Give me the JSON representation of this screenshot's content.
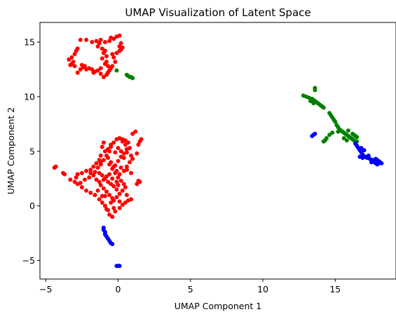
{
  "chart_data": {
    "type": "scatter",
    "title": "UMAP Visualization of Latent Space",
    "xlabel": "UMAP Component 1",
    "ylabel": "UMAP Component 2",
    "xlim": [
      -5.4,
      19.2
    ],
    "ylim": [
      -6.7,
      16.8
    ],
    "xticks": [
      -5,
      0,
      5,
      10,
      15
    ],
    "yticks": [
      -5,
      0,
      5,
      10,
      15
    ],
    "grid": false,
    "series": [
      {
        "color": "#ff0000",
        "points": [
          [
            -2.6,
            15.2
          ],
          [
            -2.2,
            15.2
          ],
          [
            -1.8,
            15.0
          ],
          [
            -1.5,
            15.1
          ],
          [
            -1.2,
            15.2
          ],
          [
            -0.9,
            15.0
          ],
          [
            -0.6,
            15.1
          ],
          [
            -0.3,
            15.3
          ],
          [
            -0.1,
            15.5
          ],
          [
            0.1,
            15.6
          ],
          [
            0.2,
            14.9
          ],
          [
            0.1,
            14.6
          ],
          [
            0.2,
            14.3
          ],
          [
            0.3,
            14.5
          ],
          [
            0.1,
            14.2
          ],
          [
            -0.1,
            14.0
          ],
          [
            -0.3,
            13.6
          ],
          [
            -0.2,
            13.2
          ],
          [
            -0.4,
            12.8
          ],
          [
            -0.6,
            12.4
          ],
          [
            -0.8,
            12.0
          ],
          [
            -1.0,
            11.8
          ],
          [
            -1.2,
            12.1
          ],
          [
            -1.4,
            12.4
          ],
          [
            -1.6,
            12.3
          ],
          [
            -1.8,
            12.5
          ],
          [
            -2.0,
            12.6
          ],
          [
            -2.2,
            12.5
          ],
          [
            -2.4,
            12.7
          ],
          [
            -2.6,
            12.5
          ],
          [
            -2.8,
            12.2
          ],
          [
            -3.0,
            12.8
          ],
          [
            -3.3,
            12.9
          ],
          [
            -3.1,
            13.2
          ],
          [
            -3.4,
            13.4
          ],
          [
            -3.2,
            13.6
          ],
          [
            -3.0,
            13.9
          ],
          [
            -2.9,
            14.2
          ],
          [
            -2.8,
            14.4
          ],
          [
            -1.4,
            14.6
          ],
          [
            -1.1,
            14.4
          ],
          [
            -0.9,
            14.2
          ],
          [
            -1.0,
            14.0
          ],
          [
            -0.8,
            13.7
          ],
          [
            -1.1,
            13.5
          ],
          [
            -0.8,
            13.2
          ],
          [
            -0.9,
            13.0
          ],
          [
            -0.7,
            12.8
          ],
          [
            -0.5,
            12.6
          ],
          [
            -0.4,
            13.9
          ],
          [
            -1.3,
            14.9
          ],
          [
            -1.7,
            12.2
          ],
          [
            -2.3,
            12.8
          ],
          [
            -3.2,
            13.0
          ],
          [
            -1.2,
            12.6
          ],
          [
            -0.7,
            12.2
          ],
          [
            -2.5,
            12.9
          ],
          [
            -0.5,
            15.4
          ],
          [
            -4.3,
            3.6
          ],
          [
            -4.4,
            3.5
          ],
          [
            -3.8,
            3.0
          ],
          [
            -3.7,
            2.9
          ],
          [
            -3.3,
            2.4
          ],
          [
            -3.0,
            2.2
          ],
          [
            -2.8,
            2.0
          ],
          [
            -2.5,
            1.7
          ],
          [
            -2.2,
            1.4
          ],
          [
            -1.9,
            1.2
          ],
          [
            -1.6,
            1.0
          ],
          [
            -1.3,
            0.6
          ],
          [
            -1.1,
            0.3
          ],
          [
            -0.9,
            0.0
          ],
          [
            -0.7,
            -0.4
          ],
          [
            -0.6,
            -0.8
          ],
          [
            -0.4,
            -1.0
          ],
          [
            -0.2,
            -0.5
          ],
          [
            0.1,
            -0.2
          ],
          [
            0.3,
            0.1
          ],
          [
            0.5,
            0.3
          ],
          [
            0.7,
            0.5
          ],
          [
            0.9,
            0.6
          ],
          [
            -2.8,
            2.9
          ],
          [
            -2.5,
            3.0
          ],
          [
            -2.2,
            3.2
          ],
          [
            -1.9,
            3.0
          ],
          [
            -1.6,
            3.1
          ],
          [
            -1.3,
            3.0
          ],
          [
            -1.1,
            2.8
          ],
          [
            -0.9,
            2.5
          ],
          [
            -0.7,
            2.2
          ],
          [
            -0.5,
            2.0
          ],
          [
            -0.3,
            1.8
          ],
          [
            -0.1,
            1.5
          ],
          [
            -1.5,
            2.4
          ],
          [
            -1.3,
            2.2
          ],
          [
            -1.2,
            1.9
          ],
          [
            -1.0,
            1.6
          ],
          [
            -0.8,
            1.3
          ],
          [
            -0.6,
            1.0
          ],
          [
            -0.4,
            0.7
          ],
          [
            -1.4,
            3.5
          ],
          [
            -1.2,
            3.8
          ],
          [
            -1.0,
            4.2
          ],
          [
            -0.8,
            4.6
          ],
          [
            -0.6,
            5.0
          ],
          [
            -0.5,
            5.4
          ],
          [
            -0.3,
            5.8
          ],
          [
            -0.1,
            6.1
          ],
          [
            0.1,
            6.2
          ],
          [
            0.3,
            5.9
          ],
          [
            0.5,
            5.6
          ],
          [
            0.6,
            5.2
          ],
          [
            0.4,
            4.8
          ],
          [
            0.2,
            4.5
          ],
          [
            0.0,
            4.1
          ],
          [
            -0.2,
            3.7
          ],
          [
            -0.4,
            3.4
          ],
          [
            -0.2,
            3.0
          ],
          [
            0.0,
            2.6
          ],
          [
            0.2,
            2.3
          ],
          [
            0.4,
            2.0
          ],
          [
            0.5,
            1.7
          ],
          [
            0.3,
            1.4
          ],
          [
            0.1,
            1.1
          ],
          [
            -0.1,
            0.8
          ],
          [
            -0.3,
            0.5
          ],
          [
            -1.0,
            5.8
          ],
          [
            -1.1,
            5.4
          ],
          [
            -0.9,
            5.0
          ],
          [
            -0.7,
            4.4
          ],
          [
            -0.5,
            4.0
          ],
          [
            -0.3,
            3.6
          ],
          [
            -0.1,
            3.2
          ],
          [
            0.1,
            2.9
          ],
          [
            -1.2,
            4.6
          ],
          [
            -1.3,
            4.2
          ],
          [
            -1.5,
            3.9
          ],
          [
            -1.7,
            3.6
          ],
          [
            -1.9,
            3.3
          ],
          [
            0.5,
            6.0
          ],
          [
            0.7,
            5.8
          ],
          [
            0.8,
            5.3
          ],
          [
            0.6,
            4.9
          ],
          [
            0.9,
            4.6
          ],
          [
            1.0,
            4.3
          ],
          [
            0.8,
            4.0
          ],
          [
            0.6,
            3.6
          ],
          [
            0.4,
            3.2
          ],
          [
            1.0,
            6.6
          ],
          [
            1.2,
            6.8
          ],
          [
            1.4,
            5.6
          ],
          [
            1.6,
            6.1
          ],
          [
            1.5,
            5.9
          ],
          [
            1.3,
            4.8
          ],
          [
            1.4,
            2.3
          ],
          [
            1.5,
            2.2
          ],
          [
            1.3,
            2.0
          ],
          [
            0.9,
            3.0
          ],
          [
            0.6,
            3.3
          ],
          [
            0.2,
            3.5
          ],
          [
            -0.6,
            2.9
          ],
          [
            -0.8,
            2.7
          ],
          [
            -1.0,
            2.4
          ],
          [
            -2.0,
            2.6
          ],
          [
            -2.3,
            2.4
          ],
          [
            -2.6,
            2.1
          ],
          [
            -0.2,
            4.9
          ],
          [
            0.0,
            5.3
          ],
          [
            0.2,
            5.0
          ],
          [
            -0.4,
            2.5
          ],
          [
            0.0,
            1.9
          ],
          [
            -1.4,
            1.4
          ],
          [
            -0.9,
            0.9
          ],
          [
            -0.5,
            0.3
          ],
          [
            -0.3,
            -0.2
          ],
          [
            -0.5,
            5.6
          ],
          [
            -0.7,
            5.2
          ],
          [
            0.6,
            1.0
          ],
          [
            -1.1,
            0.9
          ],
          [
            -0.8,
            -0.3
          ],
          [
            0.1,
            0.4
          ],
          [
            -1.2,
            4.0
          ],
          [
            -0.6,
            3.8
          ],
          [
            0.4,
            4.4
          ],
          [
            -0.1,
            2.2
          ],
          [
            -2.9,
            2.6
          ],
          [
            -1.7,
            2.8
          ],
          [
            0.3,
            6.1
          ]
        ]
      },
      {
        "color": "#008000",
        "points": [
          [
            -0.1,
            12.4
          ],
          [
            0.6,
            12.0
          ],
          [
            0.7,
            11.9
          ],
          [
            0.8,
            11.8
          ],
          [
            0.9,
            11.8
          ],
          [
            1.0,
            11.7
          ],
          [
            12.8,
            10.1
          ],
          [
            13.0,
            10.0
          ],
          [
            13.2,
            9.9
          ],
          [
            13.4,
            9.8
          ],
          [
            13.5,
            9.7
          ],
          [
            13.6,
            9.6
          ],
          [
            13.7,
            9.5
          ],
          [
            13.8,
            9.4
          ],
          [
            13.9,
            9.3
          ],
          [
            14.0,
            9.2
          ],
          [
            14.1,
            9.1
          ],
          [
            14.2,
            9.0
          ],
          [
            13.6,
            10.6
          ],
          [
            13.6,
            10.8
          ],
          [
            13.3,
            9.6
          ],
          [
            13.5,
            9.4
          ],
          [
            14.6,
            8.5
          ],
          [
            14.7,
            8.3
          ],
          [
            14.8,
            8.1
          ],
          [
            14.9,
            7.9
          ],
          [
            15.0,
            7.7
          ],
          [
            15.1,
            7.4
          ],
          [
            15.2,
            7.2
          ],
          [
            15.3,
            7.0
          ],
          [
            15.4,
            6.9
          ],
          [
            15.5,
            6.8
          ],
          [
            15.6,
            6.7
          ],
          [
            15.7,
            6.6
          ],
          [
            15.8,
            6.5
          ],
          [
            15.9,
            6.4
          ],
          [
            16.0,
            6.3
          ],
          [
            16.1,
            6.2
          ],
          [
            16.2,
            6.1
          ],
          [
            16.3,
            6.0
          ],
          [
            16.4,
            5.9
          ],
          [
            16.5,
            6.3
          ],
          [
            16.4,
            6.4
          ],
          [
            16.3,
            6.5
          ],
          [
            16.2,
            6.6
          ],
          [
            14.8,
            6.7
          ],
          [
            14.6,
            6.5
          ],
          [
            14.4,
            6.2
          ],
          [
            14.3,
            6.0
          ],
          [
            14.2,
            5.9
          ],
          [
            15.6,
            6.2
          ],
          [
            15.8,
            6.0
          ],
          [
            16.4,
            5.8
          ],
          [
            16.5,
            5.9
          ],
          [
            15.2,
            6.8
          ],
          [
            15.9,
            6.9
          ]
        ]
      },
      {
        "color": "#0000ff",
        "points": [
          [
            -1.0,
            -2.0
          ],
          [
            -1.0,
            -2.2
          ],
          [
            -0.9,
            -2.4
          ],
          [
            -0.9,
            -2.6
          ],
          [
            -0.8,
            -2.8
          ],
          [
            -0.7,
            -3.0
          ],
          [
            -0.6,
            -3.2
          ],
          [
            -0.5,
            -3.4
          ],
          [
            -0.4,
            -3.5
          ],
          [
            -0.1,
            -5.5
          ],
          [
            0.0,
            -5.5
          ],
          [
            0.1,
            -5.5
          ],
          [
            13.4,
            6.4
          ],
          [
            13.5,
            6.5
          ],
          [
            13.6,
            6.6
          ],
          [
            16.4,
            5.7
          ],
          [
            16.5,
            5.5
          ],
          [
            16.6,
            5.3
          ],
          [
            16.7,
            5.1
          ],
          [
            16.8,
            4.9
          ],
          [
            16.9,
            4.7
          ],
          [
            16.7,
            4.5
          ],
          [
            16.9,
            4.4
          ],
          [
            17.1,
            4.5
          ],
          [
            17.2,
            4.4
          ],
          [
            17.4,
            4.3
          ],
          [
            17.6,
            4.2
          ],
          [
            17.7,
            4.0
          ],
          [
            17.8,
            3.9
          ],
          [
            17.9,
            3.8
          ],
          [
            18.0,
            3.9
          ],
          [
            18.1,
            4.0
          ],
          [
            18.2,
            3.9
          ],
          [
            17.8,
            4.3
          ],
          [
            17.9,
            4.2
          ],
          [
            18.0,
            4.1
          ],
          [
            17.5,
            4.0
          ],
          [
            17.3,
            4.6
          ],
          [
            17.0,
            5.1
          ],
          [
            16.8,
            5.3
          ]
        ]
      }
    ]
  }
}
